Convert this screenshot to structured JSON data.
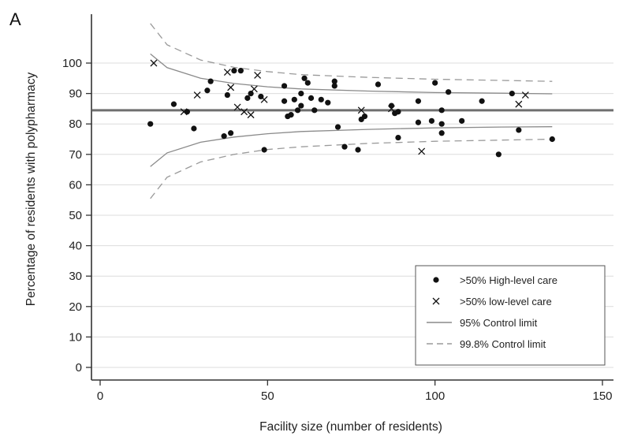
{
  "panel_label": "A",
  "chart_data": {
    "type": "scatter",
    "title": "",
    "xlabel": "Facility size (number of residents)",
    "ylabel": "Percentage of residents with polypharmacy",
    "xlim": [
      0,
      150
    ],
    "ylim": [
      0,
      100
    ],
    "x_ticks": [
      0,
      50,
      100,
      150
    ],
    "y_ticks": [
      0,
      10,
      20,
      30,
      40,
      50,
      60,
      70,
      80,
      90,
      100
    ],
    "grid": "horizontal",
    "legend_position": "bottom-right",
    "center_line": 84.5,
    "series": [
      {
        "name": ">50% High-level care",
        "marker": "dot",
        "points": [
          [
            15,
            80
          ],
          [
            22,
            86.5
          ],
          [
            26,
            84
          ],
          [
            28,
            78.5
          ],
          [
            32,
            91
          ],
          [
            33,
            94
          ],
          [
            37,
            76
          ],
          [
            38,
            89.5
          ],
          [
            39,
            77
          ],
          [
            40,
            97.5
          ],
          [
            42,
            97.5
          ],
          [
            44,
            88.5
          ],
          [
            45,
            90
          ],
          [
            48,
            89
          ],
          [
            49,
            71.5
          ],
          [
            55,
            87.5
          ],
          [
            55,
            92.5
          ],
          [
            56,
            82.5
          ],
          [
            57,
            83
          ],
          [
            58,
            88
          ],
          [
            59,
            84.5
          ],
          [
            60,
            86
          ],
          [
            60,
            90
          ],
          [
            61,
            95
          ],
          [
            62,
            93.5
          ],
          [
            63,
            88.5
          ],
          [
            64,
            84.5
          ],
          [
            66,
            88
          ],
          [
            68,
            87
          ],
          [
            70,
            92.5
          ],
          [
            70,
            94
          ],
          [
            71,
            79
          ],
          [
            73,
            72.5
          ],
          [
            77,
            71.5
          ],
          [
            78,
            81.5
          ],
          [
            79,
            82.5
          ],
          [
            83,
            93
          ],
          [
            87,
            86
          ],
          [
            88,
            83.5
          ],
          [
            89,
            84
          ],
          [
            89,
            75.5
          ],
          [
            95,
            80.5
          ],
          [
            95,
            87.5
          ],
          [
            99,
            81
          ],
          [
            100,
            93.5
          ],
          [
            102,
            77
          ],
          [
            102,
            80
          ],
          [
            102,
            84.5
          ],
          [
            104,
            90.5
          ],
          [
            108,
            81
          ],
          [
            114,
            87.5
          ],
          [
            119,
            70
          ],
          [
            123,
            90
          ],
          [
            125,
            78
          ],
          [
            135,
            75
          ]
        ]
      },
      {
        "name": ">50% low-level care",
        "marker": "x",
        "points": [
          [
            16,
            100
          ],
          [
            25,
            84
          ],
          [
            29,
            89.5
          ],
          [
            38,
            97
          ],
          [
            39,
            92
          ],
          [
            41,
            85.5
          ],
          [
            43,
            84
          ],
          [
            45,
            83
          ],
          [
            46,
            91.5
          ],
          [
            47,
            96
          ],
          [
            49,
            88
          ],
          [
            78,
            84.5
          ],
          [
            87,
            85
          ],
          [
            96,
            71
          ],
          [
            125,
            86.5
          ],
          [
            127,
            89.5
          ]
        ]
      },
      {
        "name": "95% Control limit",
        "style": "solid",
        "upper": [
          [
            15,
            103
          ],
          [
            20,
            98.5
          ],
          [
            30,
            95
          ],
          [
            40,
            93.3
          ],
          [
            50,
            92.2
          ],
          [
            60,
            91.5
          ],
          [
            80,
            90.8
          ],
          [
            100,
            90.3
          ],
          [
            120,
            90.1
          ],
          [
            135,
            89.9
          ]
        ],
        "lower": [
          [
            15,
            66
          ],
          [
            20,
            70.5
          ],
          [
            30,
            74
          ],
          [
            40,
            75.7
          ],
          [
            50,
            76.8
          ],
          [
            60,
            77.5
          ],
          [
            80,
            78.2
          ],
          [
            100,
            78.7
          ],
          [
            120,
            79
          ],
          [
            135,
            79.1
          ]
        ]
      },
      {
        "name": "99.8% Control limit",
        "style": "dashed",
        "upper": [
          [
            15,
            113
          ],
          [
            20,
            106
          ],
          [
            30,
            101
          ],
          [
            40,
            98.6
          ],
          [
            50,
            97.2
          ],
          [
            60,
            96.2
          ],
          [
            80,
            95.3
          ],
          [
            100,
            94.7
          ],
          [
            120,
            94.3
          ],
          [
            135,
            94
          ]
        ],
        "lower": [
          [
            15,
            55.5
          ],
          [
            20,
            62.5
          ],
          [
            30,
            67.5
          ],
          [
            40,
            70
          ],
          [
            50,
            71.6
          ],
          [
            60,
            72.5
          ],
          [
            80,
            73.6
          ],
          [
            100,
            74.3
          ],
          [
            120,
            74.7
          ],
          [
            135,
            75
          ]
        ]
      }
    ]
  }
}
